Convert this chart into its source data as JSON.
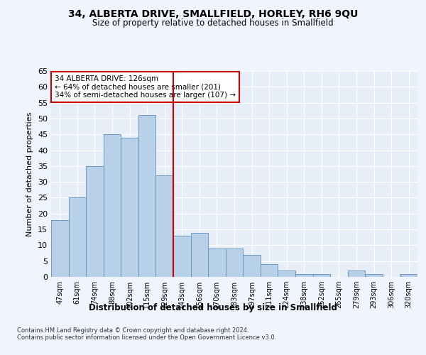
{
  "title": "34, ALBERTA DRIVE, SMALLFIELD, HORLEY, RH6 9QU",
  "subtitle": "Size of property relative to detached houses in Smallfield",
  "xlabel": "Distribution of detached houses by size in Smallfield",
  "ylabel": "Number of detached properties",
  "categories": [
    "47sqm",
    "61sqm",
    "74sqm",
    "88sqm",
    "102sqm",
    "115sqm",
    "129sqm",
    "143sqm",
    "156sqm",
    "170sqm",
    "183sqm",
    "197sqm",
    "211sqm",
    "224sqm",
    "238sqm",
    "252sqm",
    "265sqm",
    "279sqm",
    "293sqm",
    "306sqm",
    "320sqm"
  ],
  "values": [
    18,
    25,
    35,
    45,
    44,
    51,
    32,
    13,
    14,
    9,
    9,
    7,
    4,
    2,
    1,
    1,
    0,
    2,
    1,
    0,
    1
  ],
  "bar_color": "#b8d0e8",
  "bar_edge_color": "#5a8fc0",
  "red_line_index": 6,
  "annotation_title": "34 ALBERTA DRIVE: 126sqm",
  "annotation_line1": "← 64% of detached houses are smaller (201)",
  "annotation_line2": "34% of semi-detached houses are larger (107) →",
  "annotation_box_color": "#ffffff",
  "annotation_box_edge": "#cc0000",
  "red_line_color": "#cc0000",
  "background_color": "#e8eef8",
  "grid_color": "#ffffff",
  "ylim": [
    0,
    65
  ],
  "yticks": [
    0,
    5,
    10,
    15,
    20,
    25,
    30,
    35,
    40,
    45,
    50,
    55,
    60,
    65
  ],
  "footer_line1": "Contains HM Land Registry data © Crown copyright and database right 2024.",
  "footer_line2": "Contains public sector information licensed under the Open Government Licence v3.0."
}
